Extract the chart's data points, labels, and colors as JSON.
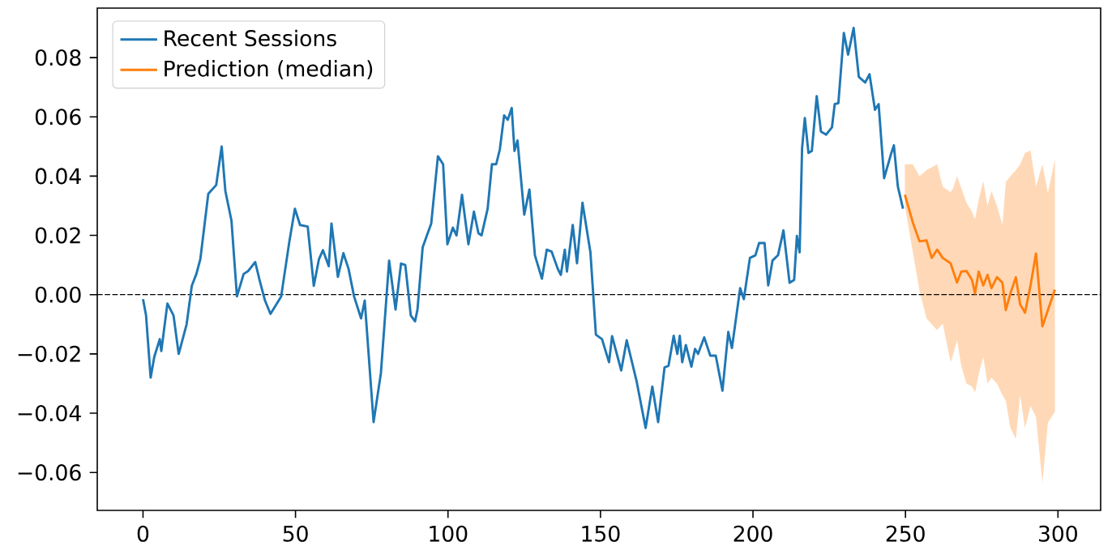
{
  "chart_data": {
    "type": "line",
    "xlim": [
      -15,
      314
    ],
    "ylim": [
      -0.0728,
      0.0967
    ],
    "xticks": [
      0,
      50,
      100,
      150,
      200,
      250,
      300
    ],
    "yticks": [
      {
        "value": -0.06,
        "label": "−0.06"
      },
      {
        "value": -0.04,
        "label": "−0.04"
      },
      {
        "value": -0.02,
        "label": "−0.02"
      },
      {
        "value": 0,
        "label": "0.00"
      },
      {
        "value": 0.02,
        "label": "0.02"
      },
      {
        "value": 0.04,
        "label": "0.04"
      },
      {
        "value": 0.06,
        "label": "0.06"
      },
      {
        "value": 0.08,
        "label": "0.08"
      }
    ],
    "legend": "top left",
    "ref_lines": [
      {
        "axis": "y",
        "value": 0,
        "color": "#000000",
        "line_style": "dashed"
      }
    ],
    "series": [
      {
        "name": "Recent Sessions",
        "color": "#1f77b4",
        "x": [
          0,
          1,
          2.5,
          3.7,
          5.5,
          6,
          8,
          10,
          11.7,
          14.3,
          16,
          17.5,
          18.8,
          21.4,
          24,
          25.8,
          27,
          29,
          30.8,
          33,
          34.5,
          36.8,
          38.2,
          40,
          41.8,
          45.3,
          48,
          49.8,
          51.5,
          54,
          56,
          57.7,
          59,
          60.9,
          61.8,
          63.9,
          65.7,
          67.4,
          69.2,
          71.5,
          72.7,
          75.6,
          78,
          80.7,
          82.8,
          84.6,
          86,
          87.8,
          89.2,
          90,
          91.7,
          93.1,
          94.5,
          96.7,
          98.4,
          99.8,
          101.6,
          102.8,
          104.6,
          106.7,
          108.5,
          110,
          111,
          113,
          114.4,
          115.8,
          117,
          118.4,
          119.6,
          120.9,
          121.8,
          122.8,
          125,
          126.7,
          128.5,
          130.8,
          132.4,
          134,
          136,
          137,
          138.3,
          139,
          140.9,
          142.3,
          144.1,
          146.7,
          148.5,
          150.5,
          152.8,
          153.8,
          156.8,
          158.6,
          161.8,
          164.8,
          167,
          168.9,
          171,
          172.3,
          174,
          175.2,
          176,
          176.8,
          178,
          179.8,
          181,
          182,
          184,
          186,
          187.8,
          190,
          191.9,
          193.1,
          195.8,
          197,
          199,
          200.8,
          202,
          203.8,
          205,
          206.4,
          208.2,
          210,
          212,
          213.5,
          214.4,
          215.3,
          216.1,
          217,
          218.2,
          219.3,
          220.9,
          222.3,
          224,
          225.9,
          226.8,
          228,
          229.8,
          231.2,
          233,
          234.7,
          236.8,
          238.2,
          240,
          241.2,
          243,
          245.3,
          246.2,
          247.5,
          249.2
        ],
        "values": [
          -0.0015,
          -0.007,
          -0.028,
          -0.021,
          -0.015,
          -0.019,
          -0.003,
          -0.007,
          -0.02,
          -0.01,
          0.003,
          0.007,
          0.012,
          0.034,
          0.037,
          0.05,
          0.035,
          0.025,
          -0.0006,
          0.007,
          0.008,
          0.011,
          0.005,
          -0.002,
          -0.0065,
          -0.0006,
          0.018,
          0.029,
          0.0235,
          0.023,
          0.003,
          0.012,
          0.015,
          0.0096,
          0.024,
          0.006,
          0.014,
          0.0087,
          -0.0006,
          -0.008,
          -0.002,
          -0.043,
          -0.0265,
          0.0115,
          -0.005,
          0.0105,
          0.01,
          -0.007,
          -0.009,
          -0.005,
          0.016,
          0.02,
          0.024,
          0.0467,
          0.044,
          0.017,
          0.0226,
          0.02,
          0.0337,
          0.017,
          0.028,
          0.0207,
          0.02,
          0.029,
          0.044,
          0.044,
          0.049,
          0.0605,
          0.059,
          0.063,
          0.0485,
          0.052,
          0.027,
          0.0355,
          0.0133,
          0.0054,
          0.0152,
          0.0145,
          0.0087,
          0.0067,
          0.0152,
          0.0078,
          0.0235,
          0.0106,
          0.031,
          0.0143,
          -0.0135,
          -0.015,
          -0.0228,
          -0.014,
          -0.0256,
          -0.0154,
          -0.029,
          -0.045,
          -0.031,
          -0.043,
          -0.0246,
          -0.024,
          -0.0139,
          -0.02,
          -0.0139,
          -0.0228,
          -0.017,
          -0.0243,
          -0.0183,
          -0.02,
          -0.0144,
          -0.0206,
          -0.0206,
          -0.0324,
          -0.0126,
          -0.018,
          0.0022,
          -0.0015,
          0.0124,
          0.0133,
          0.0174,
          0.0174,
          0.0031,
          0.0115,
          0.0133,
          0.0217,
          0.004,
          0.005,
          0.0198,
          0.0143,
          0.0494,
          0.0596,
          0.0478,
          0.0485,
          0.067,
          0.055,
          0.054,
          0.0565,
          0.0643,
          0.0646,
          0.0883,
          0.081,
          0.09,
          0.0735,
          0.0716,
          0.0744,
          0.0624,
          0.0643,
          0.0393,
          0.0476,
          0.0504,
          0.0365,
          0.029
        ]
      },
      {
        "name": "Prediction (median)",
        "color": "#ff7f0e",
        "x": [
          249.8,
          252.4,
          254.6,
          256.9,
          258.6,
          260.4,
          262.2,
          264.8,
          265.7,
          266.9,
          268.3,
          270,
          271.8,
          272.8,
          274,
          275.5,
          276.9,
          278.2,
          280,
          281.8,
          282.9,
          284.4,
          286.2,
          287.6,
          289.2,
          291,
          292.8,
          294.9,
          296.7,
          299
        ],
        "values": [
          0.0337,
          0.0244,
          0.018,
          0.0183,
          0.0124,
          0.0152,
          0.0124,
          0.0106,
          0.0078,
          0.0041,
          0.0078,
          0.008,
          0.005,
          0.0004,
          0.0078,
          0.0031,
          0.0067,
          0.0022,
          0.0059,
          0.004,
          -0.0052,
          0.0004,
          0.0059,
          -0.0033,
          -0.0061,
          0.0031,
          0.0139,
          -0.0107,
          -0.0052,
          0.0017
        ],
        "upper": [
          0.044,
          0.044,
          0.04,
          0.042,
          0.043,
          0.044,
          0.0365,
          0.0346,
          0.036,
          0.04,
          0.036,
          0.031,
          0.028,
          0.0254,
          0.032,
          0.0383,
          0.03,
          0.035,
          0.03,
          0.0235,
          0.038,
          0.04,
          0.042,
          0.044,
          0.0478,
          0.0487,
          0.0365,
          0.044,
          0.0343,
          0.0457
        ],
        "lower": [
          0.03,
          0.0144,
          0.0013,
          -0.008,
          -0.01,
          -0.012,
          -0.0098,
          -0.0228,
          -0.02,
          -0.0154,
          -0.024,
          -0.03,
          -0.031,
          -0.033,
          -0.027,
          -0.021,
          -0.03,
          -0.028,
          -0.03,
          -0.0339,
          -0.0358,
          -0.045,
          -0.0487,
          -0.034,
          -0.045,
          -0.0376,
          -0.0413,
          -0.0635,
          -0.0432,
          -0.0395
        ]
      }
    ]
  }
}
